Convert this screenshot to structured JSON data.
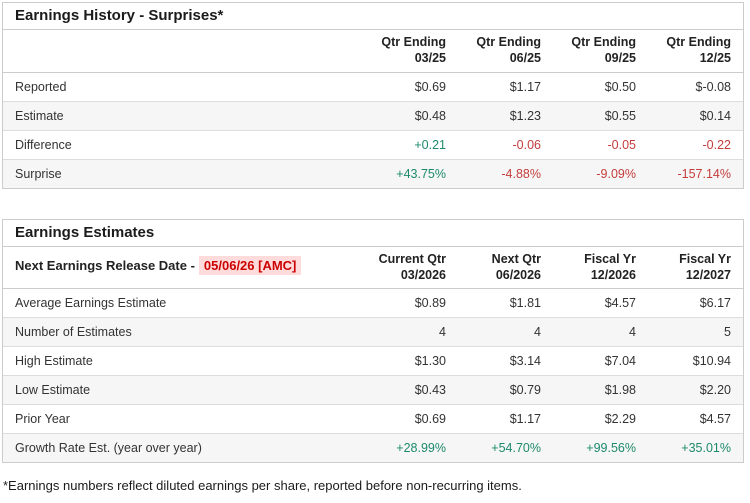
{
  "colors": {
    "positive": "#1d8a6b",
    "negative": "#c43d3d",
    "highlight_text": "#cc0000",
    "highlight_bg": "#ffdbdb"
  },
  "history": {
    "title": "Earnings History - Surprises*",
    "columns": [
      {
        "line1": "Qtr Ending",
        "line2": "03/25"
      },
      {
        "line1": "Qtr Ending",
        "line2": "06/25"
      },
      {
        "line1": "Qtr Ending",
        "line2": "09/25"
      },
      {
        "line1": "Qtr Ending",
        "line2": "12/25"
      }
    ],
    "rows": [
      {
        "label": "Reported",
        "values": [
          "$0.69",
          "$1.17",
          "$0.50",
          "$-0.08"
        ]
      },
      {
        "label": "Estimate",
        "values": [
          "$0.48",
          "$1.23",
          "$0.55",
          "$0.14"
        ]
      },
      {
        "label": "Difference",
        "values": [
          "+0.21",
          "-0.06",
          "-0.05",
          "-0.22"
        ],
        "signs": [
          "pos",
          "neg",
          "neg",
          "neg"
        ]
      },
      {
        "label": "Surprise",
        "values": [
          "+43.75%",
          "-4.88%",
          "-9.09%",
          "-157.14%"
        ],
        "signs": [
          "pos",
          "neg",
          "neg",
          "neg"
        ]
      }
    ]
  },
  "estimates": {
    "title": "Earnings Estimates",
    "release_label": "Next Earnings Release Date -",
    "release_date": "05/06/26 [AMC]",
    "columns": [
      {
        "line1": "Current Qtr",
        "line2": "03/2026"
      },
      {
        "line1": "Next Qtr",
        "line2": "06/2026"
      },
      {
        "line1": "Fiscal Yr",
        "line2": "12/2026"
      },
      {
        "line1": "Fiscal Yr",
        "line2": "12/2027"
      }
    ],
    "rows": [
      {
        "label": "Average Earnings Estimate",
        "values": [
          "$0.89",
          "$1.81",
          "$4.57",
          "$6.17"
        ]
      },
      {
        "label": "Number of Estimates",
        "values": [
          "4",
          "4",
          "4",
          "5"
        ]
      },
      {
        "label": "High Estimate",
        "values": [
          "$1.30",
          "$3.14",
          "$7.04",
          "$10.94"
        ]
      },
      {
        "label": "Low Estimate",
        "values": [
          "$0.43",
          "$0.79",
          "$1.98",
          "$2.20"
        ]
      },
      {
        "label": "Prior Year",
        "values": [
          "$0.69",
          "$1.17",
          "$2.29",
          "$4.57"
        ]
      },
      {
        "label": "Growth Rate Est. (year over year)",
        "values": [
          "+28.99%",
          "+54.70%",
          "+99.56%",
          "+35.01%"
        ],
        "signs": [
          "pos",
          "pos",
          "pos",
          "pos"
        ]
      }
    ]
  },
  "page": {
    "footnote": "*Earnings numbers reflect diluted earnings per share, reported before non-recurring items."
  }
}
